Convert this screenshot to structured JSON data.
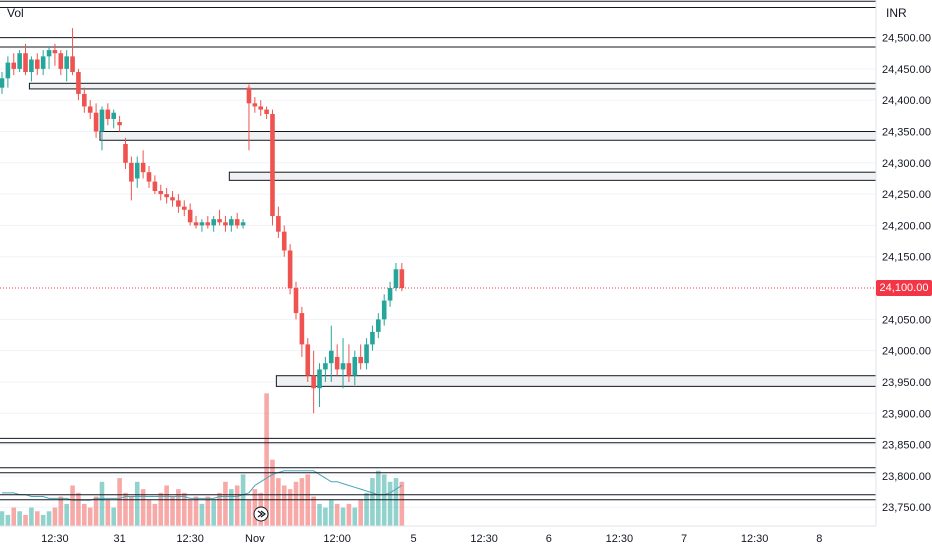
{
  "header": {
    "volume_label": "Vol",
    "currency": "INR"
  },
  "last_price_label": "24,100.00",
  "colors": {
    "up": "#26a69a",
    "down": "#ef5350",
    "last_price": "#f23645",
    "vol_ma": "#4aa5b5",
    "zone_fill": "#f0f1f3",
    "zone_stroke": "#131722",
    "grid": "#f0f3fa"
  },
  "chart_data": {
    "type": "candlestick",
    "title": "",
    "ylim": [
      23720,
      24560
    ],
    "y_ticks": [
      24500,
      24450,
      24400,
      24350,
      24300,
      24250,
      24200,
      24150,
      24050,
      24000,
      23950,
      23900,
      23850,
      23800,
      23750
    ],
    "y_tick_labels": [
      "24,500.00",
      "24,450.00",
      "24,400.00",
      "24,350.00",
      "24,300.00",
      "24,250.00",
      "24,200.00",
      "24,150.00",
      "24,050.00",
      "24,000.00",
      "23,950.00",
      "23,900.00",
      "23,850.00",
      "23,800.00",
      "23,750.00"
    ],
    "x_labels": [
      "12:30",
      "31",
      "12:30",
      "Nov",
      "12:00",
      "5",
      "12:30",
      "6",
      "12:30",
      "7",
      "12:30",
      "8"
    ],
    "x_label_index": [
      9,
      20,
      32,
      43,
      57,
      70,
      82,
      93,
      105,
      116,
      128,
      139
    ],
    "last_price": 24100,
    "candles": [
      [
        24420,
        24445,
        24410,
        24435
      ],
      [
        24435,
        24470,
        24420,
        24460
      ],
      [
        24460,
        24475,
        24440,
        24450
      ],
      [
        24450,
        24480,
        24445,
        24475
      ],
      [
        24475,
        24490,
        24440,
        24445
      ],
      [
        24445,
        24470,
        24430,
        24465
      ],
      [
        24465,
        24475,
        24440,
        24450
      ],
      [
        24450,
        24480,
        24440,
        24470
      ],
      [
        24470,
        24485,
        24450,
        24480
      ],
      [
        24480,
        24490,
        24455,
        24475
      ],
      [
        24475,
        24480,
        24440,
        24450
      ],
      [
        24450,
        24480,
        24430,
        24470
      ],
      [
        24470,
        24515,
        24440,
        24445
      ],
      [
        24445,
        24450,
        24400,
        24410
      ],
      [
        24410,
        24420,
        24380,
        24390
      ],
      [
        24390,
        24400,
        24370,
        24380
      ],
      [
        24380,
        24395,
        24340,
        24350
      ],
      [
        24350,
        24390,
        24320,
        24385
      ],
      [
        24385,
        24395,
        24360,
        24370
      ],
      [
        24370,
        24385,
        24355,
        24380
      ],
      [
        24365,
        24375,
        24350,
        24360
      ],
      [
        24330,
        24340,
        24290,
        24300
      ],
      [
        24300,
        24310,
        24240,
        24270
      ],
      [
        24275,
        24310,
        24260,
        24300
      ],
      [
        24300,
        24320,
        24275,
        24285
      ],
      [
        24285,
        24295,
        24260,
        24270
      ],
      [
        24270,
        24280,
        24250,
        24255
      ],
      [
        24255,
        24265,
        24240,
        24250
      ],
      [
        24250,
        24260,
        24235,
        24245
      ],
      [
        24245,
        24255,
        24230,
        24240
      ],
      [
        24240,
        24250,
        24220,
        24230
      ],
      [
        24230,
        24240,
        24215,
        24225
      ],
      [
        24225,
        24235,
        24200,
        24205
      ],
      [
        24205,
        24215,
        24195,
        24200
      ],
      [
        24200,
        24210,
        24190,
        24205
      ],
      [
        24205,
        24215,
        24195,
        24200
      ],
      [
        24200,
        24215,
        24190,
        24210
      ],
      [
        24210,
        24225,
        24200,
        24205
      ],
      [
        24205,
        24215,
        24190,
        24200
      ],
      [
        24200,
        24215,
        24190,
        24210
      ],
      [
        24210,
        24220,
        24195,
        24200
      ],
      [
        24200,
        24210,
        24195,
        24205
      ],
      [
        24420,
        24425,
        24320,
        24395
      ],
      [
        24395,
        24405,
        24380,
        24390
      ],
      [
        24390,
        24400,
        24375,
        24385
      ],
      [
        24385,
        24390,
        24370,
        24378
      ],
      [
        24378,
        24385,
        24200,
        24215
      ],
      [
        24215,
        24230,
        24180,
        24190
      ],
      [
        24190,
        24200,
        24150,
        24160
      ],
      [
        24160,
        24170,
        24090,
        24100
      ],
      [
        24100,
        24110,
        24050,
        24060
      ],
      [
        24060,
        24070,
        23990,
        24010
      ],
      [
        24010,
        24020,
        23950,
        23960
      ],
      [
        23960,
        24000,
        23900,
        23940
      ],
      [
        23940,
        23980,
        23910,
        23970
      ],
      [
        23970,
        23990,
        23950,
        23980
      ],
      [
        23980,
        24040,
        23950,
        24000
      ],
      [
        23990,
        24010,
        23960,
        23970
      ],
      [
        23970,
        24020,
        23940,
        23980
      ],
      [
        23980,
        24010,
        23950,
        23960
      ],
      [
        23960,
        24000,
        23945,
        23990
      ],
      [
        23990,
        24010,
        23970,
        23980
      ],
      [
        23980,
        24020,
        23970,
        24010
      ],
      [
        24010,
        24040,
        24000,
        24030
      ],
      [
        24030,
        24060,
        24020,
        24050
      ],
      [
        24050,
        24090,
        24040,
        24080
      ],
      [
        24080,
        24110,
        24070,
        24100
      ],
      [
        24100,
        24140,
        24095,
        24130
      ],
      [
        24130,
        24140,
        24095,
        24100
      ]
    ],
    "volume": [
      4,
      3,
      5,
      4,
      3,
      5,
      4,
      3,
      4,
      5,
      8,
      6,
      11,
      9,
      6,
      5,
      8,
      12,
      7,
      5,
      13,
      9,
      8,
      12,
      10,
      7,
      6,
      9,
      11,
      8,
      10,
      9,
      7,
      8,
      6,
      8,
      7,
      9,
      12,
      10,
      11,
      14,
      7,
      10,
      9,
      36,
      18,
      13,
      11,
      10,
      12,
      13,
      14,
      8,
      6,
      5,
      7,
      6,
      5,
      6,
      5,
      7,
      9,
      13,
      15,
      14,
      12,
      13,
      12
    ],
    "volume_ma": [
      9,
      9,
      9,
      8.5,
      8.5,
      8,
      8,
      8,
      7.5,
      7.5,
      7.5,
      7.5,
      7,
      7,
      7,
      7,
      7.5,
      7.5,
      7.5,
      7.5,
      7.5,
      8,
      8,
      8,
      8,
      8,
      8,
      8,
      8,
      8,
      8,
      8,
      7.5,
      7.5,
      7.5,
      7.5,
      7.5,
      8,
      8,
      8,
      8,
      8.5,
      9,
      11,
      12,
      13,
      14,
      14.5,
      15,
      15,
      15,
      15,
      15,
      15,
      14,
      13,
      12,
      12,
      11.5,
      11,
      10.5,
      10,
      9.5,
      9,
      8.5,
      8.5,
      9,
      10,
      11
    ],
    "volume_max": 38,
    "horizontal_lines": [
      24558,
      24548,
      24500,
      24485,
      23860,
      23853,
      23813,
      23805,
      23770,
      23762
    ],
    "zones": [
      {
        "start_index": 5,
        "low": 24418,
        "high": 24427
      },
      {
        "start_index": 17,
        "low": 24336,
        "high": 24350
      },
      {
        "start_index": 39,
        "low": 24272,
        "high": 24285
      },
      {
        "start_index": 47,
        "low": 23943,
        "high": 23960
      }
    ]
  }
}
